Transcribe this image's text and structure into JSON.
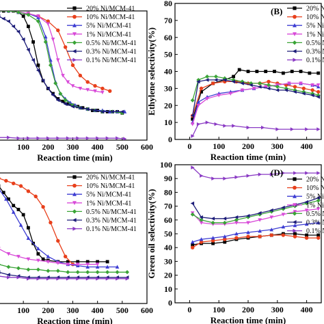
{
  "colors": {
    "20% Ni/MCM-41": "#000000",
    "10% Ni/MCM-41": "#e8401c",
    "5% Ni/MCM-41": "#3c3cd2",
    "1% Ni/MCM-41": "#d84ad8",
    "0.5% Ni/MCM-41": "#3aa436",
    "0.3% Ni/MCM-41": "#1c1c78",
    "0.1% Ni/MCM-41": "#8a3ac4"
  },
  "markers": {
    "20% Ni/MCM-41": "square",
    "10% Ni/MCM-41": "circle",
    "5% Ni/MCM-41": "triangle-up",
    "1% Ni/MCM-41": "triangle-down",
    "0.5% Ni/MCM-41": "diamond",
    "0.3% Ni/MCM-41": "triangle-left",
    "0.1% Ni/MCM-41": "triangle-right"
  },
  "chart_data": [
    {
      "panel": "A",
      "type": "line",
      "title": "",
      "xlabel": "Reaction time (min)",
      "ylabel": "",
      "xlim": [
        0,
        600
      ],
      "ylim": [
        0,
        100
      ],
      "xticks": [
        "100",
        "200",
        "300",
        "400",
        "500",
        "600"
      ],
      "yticks": [],
      "legend": "top-right",
      "series": [
        {
          "name": "20% Ni/MCM-41",
          "x": [
            0,
            20,
            40,
            60,
            80,
            100,
            120,
            140,
            160,
            180,
            200,
            220,
            240,
            260,
            280,
            300,
            320,
            340,
            360,
            380,
            400,
            420,
            440,
            460,
            480,
            500
          ],
          "y": [
            100,
            100,
            100,
            100,
            99,
            96,
            88,
            76,
            58,
            46,
            40,
            36,
            32,
            30,
            28,
            27,
            26,
            25,
            24,
            23,
            23,
            22,
            22,
            22,
            22,
            21
          ]
        },
        {
          "name": "10% Ni/MCM-41",
          "x": [
            0,
            40,
            80,
            120,
            160,
            200,
            240,
            270,
            300,
            330,
            360,
            390,
            420,
            450
          ],
          "y": [
            100,
            100,
            99,
            98,
            96,
            92,
            85,
            72,
            58,
            50,
            45,
            42,
            40,
            38
          ]
        },
        {
          "name": "5% Ni/MCM-41",
          "x": [
            0,
            40,
            80,
            120,
            160,
            190,
            210,
            230,
            250,
            270,
            290,
            310,
            330,
            360,
            390,
            420,
            450,
            480,
            510
          ],
          "y": [
            100,
            100,
            99,
            98,
            95,
            80,
            62,
            45,
            36,
            32,
            29,
            27,
            25,
            24,
            23,
            23,
            22,
            22,
            22
          ]
        },
        {
          "name": "1% Ni/MCM-41",
          "x": [
            0,
            40,
            80,
            120,
            160,
            200,
            220,
            240,
            260,
            280,
            300,
            330,
            360,
            390,
            420
          ],
          "y": [
            100,
            100,
            99,
            98,
            96,
            90,
            78,
            62,
            50,
            45,
            42,
            40,
            39,
            38,
            37
          ]
        },
        {
          "name": "0.5% Ni/MCM-41",
          "x": [
            0,
            40,
            80,
            120,
            160,
            190,
            210,
            230,
            250,
            270,
            300,
            330,
            360,
            390,
            420,
            460,
            500
          ],
          "y": [
            100,
            100,
            99,
            97,
            92,
            76,
            58,
            44,
            36,
            31,
            27,
            25,
            24,
            23,
            22,
            22,
            21
          ]
        },
        {
          "name": "0.3% Ni/MCM-41",
          "x": [
            0,
            20,
            40,
            60,
            80,
            100,
            120,
            140,
            160,
            180,
            200,
            220,
            240,
            270,
            300,
            330,
            360,
            390,
            420,
            460,
            500
          ],
          "y": [
            96,
            94,
            92,
            88,
            84,
            78,
            70,
            62,
            54,
            46,
            40,
            35,
            31,
            28,
            26,
            25,
            24,
            23,
            22,
            22,
            22
          ]
        },
        {
          "name": "0.1% Ni/MCM-41",
          "x": [
            0,
            40,
            80,
            120,
            160,
            200,
            240,
            280,
            320,
            360,
            400,
            440,
            480,
            510
          ],
          "y": [
            2,
            2,
            1.5,
            1.5,
            1.5,
            1.5,
            1.5,
            1.5,
            1.5,
            1.5,
            1.5,
            1.5,
            1.5,
            1
          ]
        }
      ]
    },
    {
      "panel": "B",
      "type": "line",
      "title": "(B)",
      "xlabel": "Reaction time (min)",
      "ylabel": "Ethylene selectivity(%)",
      "xlim": [
        -50,
        450
      ],
      "ylim": [
        0,
        80
      ],
      "xticks": [
        "0",
        "100",
        "200",
        "300",
        "400"
      ],
      "yticks": [
        "0",
        "10",
        "20",
        "30",
        "40",
        "50",
        "60",
        "70",
        "80"
      ],
      "legend": "top-right",
      "series": [
        {
          "name": "20% Ni/MCM-41",
          "x": [
            10,
            40,
            80,
            120,
            150,
            170,
            200,
            230,
            260,
            290,
            320,
            350,
            380,
            410,
            440
          ],
          "y": [
            12,
            28,
            33,
            35,
            37,
            41,
            40,
            40,
            40,
            40,
            39,
            40,
            40,
            39,
            39
          ]
        },
        {
          "name": "10% Ni/MCM-41",
          "x": [
            10,
            40,
            80,
            120,
            160,
            200,
            240,
            270,
            300,
            330,
            360,
            390,
            420,
            440
          ],
          "y": [
            14,
            30,
            33,
            34,
            34,
            33,
            33,
            34,
            33,
            32,
            31,
            30,
            29,
            28
          ]
        },
        {
          "name": "5% Ni/MCM-41",
          "x": [
            10,
            30,
            60,
            100,
            140,
            180,
            220,
            260,
            300,
            340,
            380,
            420,
            440
          ],
          "y": [
            10,
            22,
            25,
            27,
            28,
            29,
            30,
            31,
            32,
            33,
            33,
            32,
            31
          ]
        },
        {
          "name": "1% Ni/MCM-41",
          "x": [
            10,
            30,
            60,
            100,
            140,
            180,
            220,
            260,
            300,
            340,
            380,
            420,
            440
          ],
          "y": [
            9,
            20,
            24,
            26,
            27,
            29,
            30,
            31,
            32,
            33,
            33,
            32,
            32
          ]
        },
        {
          "name": "0.5% Ni/MCM-41",
          "x": [
            10,
            30,
            60,
            90,
            120,
            150,
            180,
            210,
            240,
            270,
            300,
            330,
            360,
            390,
            420,
            440
          ],
          "y": [
            23,
            35,
            37,
            37,
            36,
            35,
            34,
            33,
            33,
            32,
            31,
            30,
            29,
            28,
            27,
            26
          ]
        },
        {
          "name": "0.3% Ni/MCM-41",
          "x": [
            10,
            30,
            60,
            90,
            120,
            150,
            180,
            210,
            240,
            270,
            300,
            330,
            360,
            390,
            420,
            440
          ],
          "y": [
            14,
            34,
            35,
            35,
            35,
            34,
            33,
            32,
            31,
            30,
            29,
            29,
            28,
            27,
            26,
            25
          ]
        },
        {
          "name": "0.1% Ni/MCM-41",
          "x": [
            10,
            30,
            60,
            90,
            120,
            150,
            200,
            250,
            300,
            350,
            400,
            440
          ],
          "y": [
            2,
            9,
            10,
            9,
            8,
            8,
            7,
            7,
            6,
            6,
            6,
            6
          ]
        }
      ]
    },
    {
      "panel": "C",
      "type": "line",
      "title": "",
      "xlabel": "Reaction time (min)",
      "ylabel": "",
      "xlim": [
        0,
        600
      ],
      "ylim": [
        0,
        100
      ],
      "xticks": [
        "100",
        "200",
        "300",
        "400",
        "500",
        "600"
      ],
      "yticks": [],
      "legend": "top-right",
      "series": [
        {
          "name": "20% Ni/MCM-41",
          "x": [
            0,
            20,
            40,
            60,
            80,
            100,
            120,
            140,
            160,
            180,
            200,
            240,
            280,
            320,
            360,
            400,
            440
          ],
          "y": [
            90,
            85,
            80,
            75,
            72,
            68,
            58,
            46,
            38,
            34,
            33,
            32,
            32,
            32,
            32,
            32,
            32
          ]
        },
        {
          "name": "10% Ni/MCM-41",
          "x": [
            0,
            30,
            60,
            90,
            120,
            150,
            180,
            210,
            240,
            270,
            300
          ],
          "y": [
            96,
            94,
            92,
            90,
            86,
            82,
            74,
            62,
            48,
            36,
            30
          ]
        },
        {
          "name": "5% Ni/MCM-41",
          "x": [
            0,
            30,
            60,
            90,
            120,
            160,
            200,
            240,
            280,
            320,
            360,
            400,
            440,
            480
          ],
          "y": [
            88,
            80,
            70,
            60,
            50,
            42,
            36,
            32,
            30,
            29,
            28,
            28,
            28,
            28
          ]
        },
        {
          "name": "1% Ni/MCM-41",
          "x": [
            0,
            40,
            80,
            120,
            160,
            200,
            240,
            280,
            320,
            360,
            400
          ],
          "y": [
            42,
            38,
            36,
            34,
            33,
            32,
            31,
            30,
            30,
            30,
            30
          ]
        },
        {
          "name": "0.5% Ni/MCM-41",
          "x": [
            0,
            40,
            80,
            120,
            160,
            200,
            240,
            280,
            320,
            360,
            400,
            440,
            480,
            520
          ],
          "y": [
            30,
            28,
            27,
            26,
            26,
            25,
            25,
            24,
            24,
            24,
            24,
            24,
            24,
            24
          ]
        },
        {
          "name": "0.3% Ni/MCM-41",
          "x": [
            0,
            40,
            80,
            120,
            160,
            200,
            240,
            280,
            320,
            360,
            400,
            440,
            480,
            520
          ],
          "y": [
            24,
            22,
            21,
            20,
            20,
            20,
            20,
            20,
            20,
            20,
            20,
            20,
            20,
            20
          ]
        },
        {
          "name": "0.1% Ni/MCM-41",
          "x": [
            0,
            40,
            80,
            120,
            160,
            200,
            240,
            280,
            320,
            360,
            400,
            440,
            480,
            520
          ],
          "y": [
            21,
            20,
            20,
            19,
            19,
            19,
            19,
            19,
            19,
            19,
            19,
            19,
            19,
            19
          ]
        }
      ]
    },
    {
      "panel": "D",
      "type": "line",
      "title": "(D)",
      "xlabel": "Reaction time (min)",
      "ylabel": "Green oil selectivity(%)",
      "xlim": [
        -50,
        450
      ],
      "ylim": [
        0,
        100
      ],
      "xticks": [
        "0",
        "100",
        "200",
        "300",
        "400"
      ],
      "yticks": [
        "0",
        "10",
        "20",
        "30",
        "40",
        "50",
        "60",
        "70",
        "80",
        "90",
        "100"
      ],
      "legend": "top-right",
      "series": [
        {
          "name": "20% Ni/MCM-41",
          "x": [
            10,
            40,
            80,
            120,
            160,
            200,
            240,
            280,
            320,
            360,
            400,
            440
          ],
          "y": [
            42,
            43,
            43,
            44,
            46,
            47,
            48,
            49,
            50,
            50,
            49,
            49
          ]
        },
        {
          "name": "10% Ni/MCM-41",
          "x": [
            10,
            40,
            80,
            120,
            160,
            200,
            240,
            280,
            320,
            360,
            400,
            440
          ],
          "y": [
            40,
            44,
            45,
            46,
            47,
            48,
            48,
            49,
            49,
            48,
            47,
            47
          ]
        },
        {
          "name": "5% Ni/MCM-41",
          "x": [
            10,
            40,
            80,
            120,
            160,
            200,
            240,
            280,
            320,
            360,
            400,
            440
          ],
          "y": [
            44,
            46,
            47,
            48,
            50,
            51,
            52,
            53,
            55,
            56,
            57,
            58
          ]
        },
        {
          "name": "1% Ni/MCM-41",
          "x": [
            10,
            40,
            80,
            120,
            160,
            200,
            240,
            280,
            320,
            360,
            400,
            440
          ],
          "y": [
            65,
            58,
            57,
            57,
            58,
            58,
            60,
            62,
            64,
            66,
            67,
            68
          ]
        },
        {
          "name": "0.5% Ni/MCM-41",
          "x": [
            10,
            40,
            80,
            120,
            160,
            200,
            240,
            280,
            320,
            360,
            400,
            440
          ],
          "y": [
            64,
            60,
            58,
            58,
            60,
            62,
            64,
            66,
            68,
            70,
            72,
            74
          ]
        },
        {
          "name": "0.3% Ni/MCM-41",
          "x": [
            10,
            40,
            80,
            120,
            160,
            200,
            240,
            280,
            320,
            360,
            400,
            440
          ],
          "y": [
            72,
            62,
            61,
            61,
            62,
            63,
            65,
            67,
            69,
            71,
            73,
            76
          ]
        },
        {
          "name": "0.1% Ni/MCM-41",
          "x": [
            10,
            40,
            80,
            120,
            160,
            200,
            240,
            280,
            320,
            360,
            400,
            440
          ],
          "y": [
            98,
            92,
            90,
            90,
            91,
            92,
            93,
            93,
            94,
            94,
            94,
            94
          ]
        }
      ]
    }
  ]
}
